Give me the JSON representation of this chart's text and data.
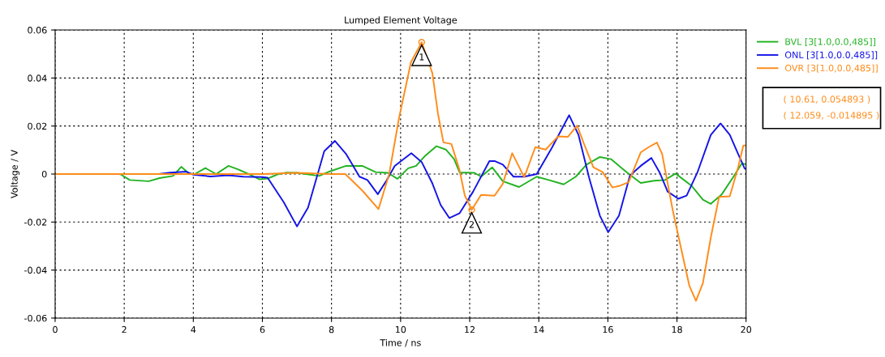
{
  "chart_data": {
    "type": "line",
    "title": "Lumped Element Voltage",
    "xlabel": "Time / ns",
    "ylabel": "Voltage / V",
    "xlim": [
      0,
      20
    ],
    "xticks": [
      0,
      2,
      4,
      6,
      8,
      10,
      12,
      14,
      16,
      18,
      20
    ],
    "ylim": [
      -0.06,
      0.06
    ],
    "yticks": [
      -0.06,
      -0.04,
      -0.02,
      0,
      0.02,
      0.04,
      0.06
    ],
    "grid": true,
    "legend": "top right",
    "marker": "none",
    "line_style": "solid",
    "series": [
      {
        "name": "BVL [3[1.0,0.0,485]]",
        "color": "#22b322",
        "x": [
          0,
          1.88,
          2.16,
          2.71,
          3.02,
          3.41,
          3.65,
          3.88,
          4.04,
          4.35,
          4.66,
          5.02,
          5.29,
          5.6,
          5.92,
          6.15,
          6.46,
          6.7,
          7.01,
          7.64,
          7.95,
          8.42,
          8.89,
          9.28,
          9.63,
          9.91,
          10.22,
          10.45,
          10.69,
          11.04,
          11.31,
          11.55,
          11.71,
          11.94,
          12.14,
          12.33,
          12.65,
          12.96,
          13.43,
          13.94,
          14.29,
          14.72,
          15.07,
          15.38,
          15.77,
          16.09,
          16.56,
          16.95,
          17.34,
          17.65,
          17.96,
          18.43,
          18.75,
          18.98,
          19.3,
          19.61,
          19.88,
          20
        ],
        "values": [
          0,
          0,
          -0.0025,
          -0.003,
          -0.0017,
          -0.0008,
          0.003,
          0.0002,
          0,
          0.0025,
          0,
          0.0034,
          0.002,
          0,
          -0.0022,
          -0.0019,
          0,
          0.0006,
          0.0005,
          -0.0008,
          0.0011,
          0.0034,
          0.0034,
          0.0008,
          0.0005,
          -0.002,
          0.0024,
          0.0034,
          0.0073,
          0.0116,
          0.0102,
          0.0062,
          0.0006,
          0.0006,
          0.0005,
          -0.0011,
          0.0028,
          -0.003,
          -0.0054,
          -0.0011,
          -0.0025,
          -0.0043,
          -0.0011,
          0.0039,
          0.0071,
          0.0062,
          0.0006,
          -0.0037,
          -0.0028,
          -0.0025,
          0.0002,
          -0.005,
          -0.0107,
          -0.0124,
          -0.0084,
          -0.0017,
          0.0045,
          0.004
        ]
      },
      {
        "name": "ONL [3[1.0,0.0,485]]",
        "color": "#1515e6",
        "x": [
          0,
          3.0,
          3.33,
          3.8,
          4.0,
          4.5,
          5.0,
          5.45,
          6.0,
          6.15,
          6.62,
          7.0,
          7.32,
          7.6,
          7.79,
          8.1,
          8.42,
          8.81,
          9.04,
          9.34,
          9.59,
          9.83,
          10.31,
          10.61,
          10.92,
          11.16,
          11.41,
          11.71,
          12.1,
          12.57,
          12.72,
          12.96,
          13.27,
          13.58,
          13.94,
          14.37,
          14.88,
          15.15,
          15.46,
          15.77,
          16.01,
          16.32,
          16.64,
          16.95,
          17.26,
          17.5,
          17.73,
          18.04,
          18.28,
          18.59,
          18.98,
          19.26,
          19.53,
          19.77,
          19.96,
          20
        ],
        "values": [
          0,
          0,
          0.0006,
          0.001,
          -0.0003,
          -0.001,
          -0.0005,
          -0.0011,
          -0.0013,
          -0.0015,
          -0.0118,
          -0.0218,
          -0.014,
          0,
          0.0095,
          0.0138,
          0.0084,
          -0.0011,
          -0.0025,
          -0.0084,
          -0.0028,
          0.0034,
          0.0087,
          0.005,
          -0.0039,
          -0.0129,
          -0.0183,
          -0.0163,
          -0.0073,
          0.0054,
          0.0054,
          0.0039,
          -0.0011,
          -0.0011,
          0,
          0.0107,
          0.0245,
          0.0163,
          -0.0017,
          -0.0174,
          -0.0242,
          -0.0174,
          -0.0006,
          0.0034,
          0.0067,
          0.0006,
          -0.0073,
          -0.0103,
          -0.009,
          0.0006,
          0.0163,
          0.0211,
          0.0163,
          0.0084,
          0.0023,
          0.002
        ]
      },
      {
        "name": "OVR [3[1.0,0.0,485]]",
        "color": "#ff8c1a",
        "x": [
          0,
          6.0,
          7.0,
          8.0,
          8.4,
          8.9,
          9.36,
          9.67,
          9.95,
          10.3,
          10.61,
          10.92,
          11.08,
          11.24,
          11.47,
          11.7,
          11.86,
          12.059,
          12.33,
          12.72,
          12.96,
          13.23,
          13.58,
          13.9,
          14.2,
          14.56,
          14.84,
          15.11,
          15.3,
          15.58,
          15.85,
          16.13,
          16.32,
          16.6,
          16.95,
          17.18,
          17.42,
          17.57,
          17.88,
          18.12,
          18.36,
          18.55,
          18.75,
          18.98,
          19.22,
          19.53,
          19.77,
          19.92,
          20
        ],
        "values": [
          0,
          0,
          0.0005,
          0,
          0,
          -0.007,
          -0.0146,
          0,
          0.023,
          0.0466,
          0.054893,
          0.042,
          0.0253,
          0.0132,
          0.0125,
          0.002,
          -0.009,
          -0.014895,
          -0.0087,
          -0.009,
          -0.004,
          0.0087,
          -0.0013,
          0.0112,
          0.0102,
          0.0157,
          0.0155,
          0.0202,
          0.0129,
          0.0028,
          0.0008,
          -0.0056,
          -0.005,
          -0.0034,
          0.009,
          0.0112,
          0.0131,
          0.0084,
          -0.0152,
          -0.031,
          -0.0466,
          -0.0528,
          -0.0455,
          -0.0264,
          -0.0095,
          -0.0093,
          0.0028,
          0.0118,
          0.012
        ]
      }
    ],
    "annotations": [
      {
        "text": "1",
        "x": 10.61,
        "y": 0.054893
      },
      {
        "text": "2",
        "x": 12.059,
        "y": -0.014895
      },
      "( 10.61, 0.054893 )",
      "( 12.059, -0.014895 )"
    ]
  }
}
